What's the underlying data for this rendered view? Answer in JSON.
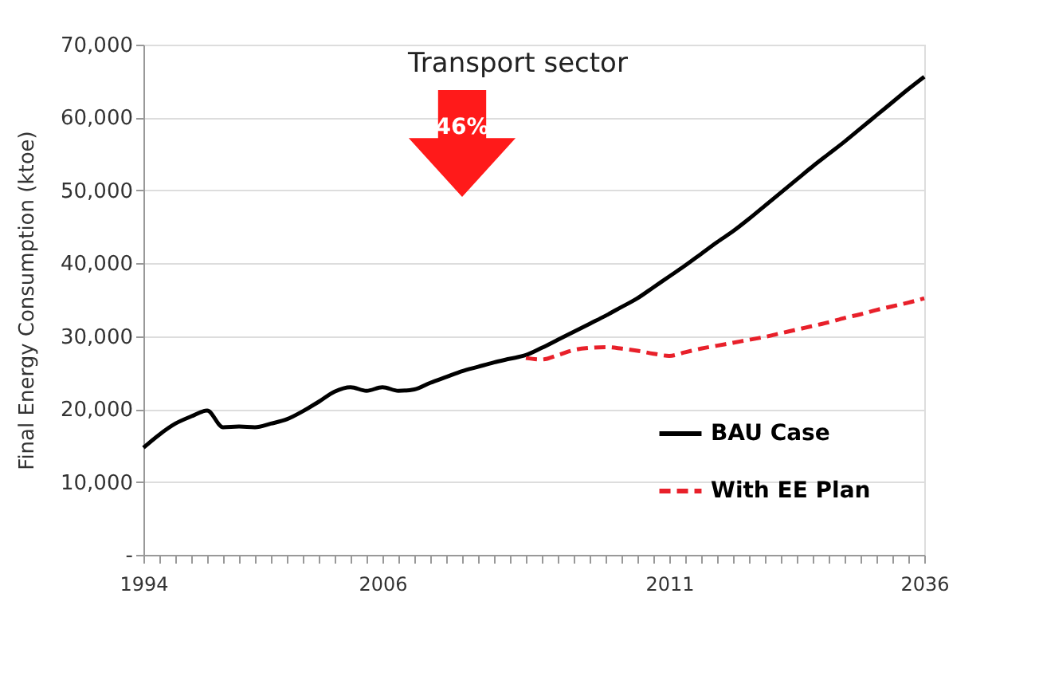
{
  "chart_data": {
    "type": "line",
    "ylabel": "Final Energy Consumption (ktoe)",
    "categories": [
      "1994",
      null,
      null,
      null,
      null,
      null,
      null,
      null,
      null,
      null,
      null,
      null,
      null,
      null,
      null,
      "2006",
      null,
      null,
      null,
      null,
      null,
      null,
      null,
      null,
      null,
      null,
      null,
      null,
      null,
      null,
      null,
      null,
      null,
      "2011",
      null,
      null,
      null,
      null,
      null,
      null,
      null,
      null,
      null,
      null,
      null,
      null,
      null,
      null,
      null,
      "2036"
    ],
    "series": [
      {
        "name": "BAU Case",
        "color": "#000000",
        "line_style": "solid",
        "values": [
          14700,
          16500,
          18000,
          19000,
          19800,
          17500,
          17600,
          17500,
          18000,
          18600,
          19700,
          21000,
          22400,
          23000,
          22500,
          23000,
          22500,
          22700,
          23600,
          24400,
          25200,
          25800,
          26400,
          26900,
          27400,
          28400,
          29500,
          30600,
          31700,
          32800,
          34000,
          35200,
          36700,
          38200,
          39700,
          41300,
          42900,
          44400,
          46100,
          47900,
          49700,
          51500,
          53300,
          55000,
          56700,
          58500,
          60300,
          62100,
          63900,
          65600
        ]
      },
      {
        "name": "With EE Plan",
        "color": "#e8202a",
        "line_style": "dashed",
        "values": [
          null,
          null,
          null,
          null,
          null,
          null,
          null,
          null,
          null,
          null,
          null,
          null,
          null,
          null,
          null,
          null,
          null,
          null,
          null,
          null,
          null,
          null,
          null,
          null,
          27000,
          26800,
          27400,
          28100,
          28400,
          28500,
          28300,
          28000,
          27600,
          27300,
          27800,
          28300,
          28700,
          29100,
          29500,
          29900,
          30400,
          30900,
          31400,
          31900,
          32500,
          33000,
          33600,
          34100,
          34600,
          35200
        ]
      }
    ],
    "ylim": [
      0,
      70000
    ],
    "yticks": [
      {
        "value": 0,
        "label": "-"
      },
      {
        "value": 10000,
        "label": "10,000"
      },
      {
        "value": 20000,
        "label": "20,000"
      },
      {
        "value": 30000,
        "label": "30,000"
      },
      {
        "value": 40000,
        "label": "40,000"
      },
      {
        "value": 50000,
        "label": "50,000"
      },
      {
        "value": 60000,
        "label": "60,000"
      },
      {
        "value": 70000,
        "label": "70,000"
      }
    ],
    "grid": "y",
    "legend": "bottom right",
    "marker": "none",
    "annotations": [
      "Transport sector",
      "46%"
    ]
  }
}
